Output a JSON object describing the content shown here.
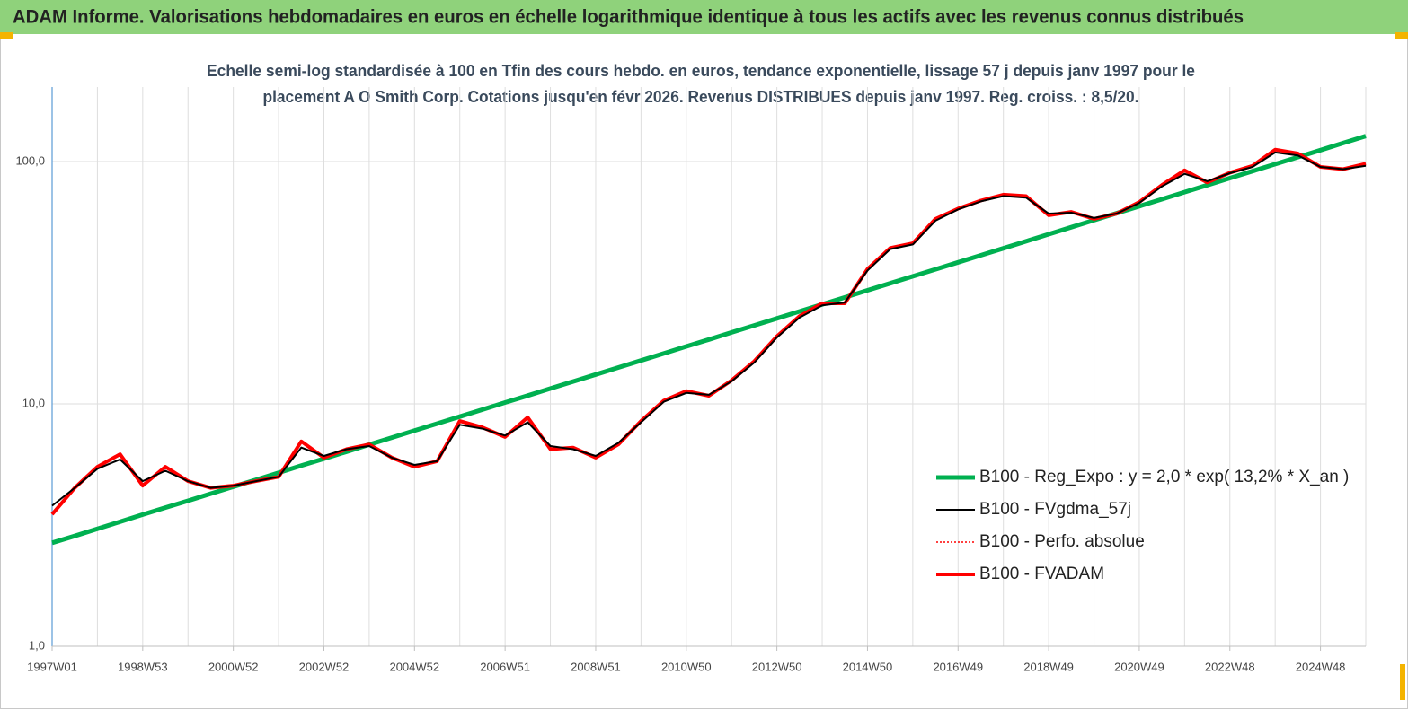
{
  "chart_data": {
    "type": "line",
    "title": "ADAM Informe. Valorisations hebdomadaires en euros en échelle logarithmique identique à tous les actifs avec les revenus connus distribués",
    "subtitle": [
      "Echelle semi-log standardisée à 100 en Tfin des cours hebdo. en euros, tendance exponentielle, lissage 57 j depuis janv 1997 pour le",
      "placement A O Smith Corp. Cotations jusqu'en févr 2026. Revenus DISTRIBUES depuis janv 1997. Reg. croiss. : 8,5/20."
    ],
    "log_scale": true,
    "grid": true,
    "legend_position": "right",
    "ylim": [
      1,
      203
    ],
    "yticks": [
      {
        "value": 1,
        "label": "1,0"
      },
      {
        "value": 10,
        "label": "10,0"
      },
      {
        "value": 100,
        "label": "100,0"
      }
    ],
    "categories": [
      "1997W01",
      null,
      null,
      null,
      "1998W53",
      null,
      null,
      null,
      "2000W52",
      null,
      null,
      null,
      "2002W52",
      null,
      null,
      null,
      "2004W52",
      null,
      null,
      null,
      "2006W51",
      null,
      null,
      null,
      "2008W51",
      null,
      null,
      null,
      "2010W50",
      null,
      null,
      null,
      "2012W50",
      null,
      null,
      null,
      "2014W50",
      null,
      null,
      null,
      "2016W49",
      null,
      null,
      null,
      "2018W49",
      null,
      null,
      null,
      "2020W49",
      null,
      null,
      null,
      "2022W48",
      null,
      null,
      null,
      "2024W48",
      null,
      null
    ],
    "series": [
      {
        "name": "B100 - Reg_Expo : y = 2,0 * exp( 13,2% *  X_an )",
        "color": "#00b050",
        "width": 5,
        "dash": "solid",
        "values": [
          2.67,
          2.85,
          3.05,
          3.26,
          3.49,
          3.73,
          3.98,
          4.26,
          4.55,
          4.86,
          5.2,
          5.56,
          5.94,
          6.35,
          6.79,
          7.26,
          7.76,
          8.29,
          8.86,
          9.47,
          10.13,
          10.82,
          11.57,
          12.37,
          13.22,
          14.13,
          15.1,
          16.14,
          17.26,
          18.44,
          19.72,
          21.07,
          22.53,
          24.08,
          25.74,
          27.51,
          29.41,
          31.43,
          33.6,
          35.91,
          38.39,
          41.03,
          43.86,
          46.88,
          50.11,
          53.57,
          57.26,
          61.2,
          65.42,
          69.93,
          74.75,
          79.9,
          85.4,
          91.29,
          97.58,
          104.3,
          111.5,
          119.2,
          127.4
        ]
      },
      {
        "name": "B100 - FVgdma_57j",
        "color": "#000000",
        "width": 2,
        "dash": "solid",
        "values": [
          3.8,
          4.5,
          5.4,
          5.9,
          4.8,
          5.3,
          4.8,
          4.5,
          4.6,
          4.8,
          5.0,
          6.6,
          6.1,
          6.5,
          6.7,
          6.0,
          5.6,
          5.8,
          8.2,
          7.9,
          7.4,
          8.4,
          6.7,
          6.5,
          6.1,
          6.9,
          8.4,
          10.2,
          11.1,
          10.9,
          12.4,
          14.8,
          18.8,
          22.7,
          25.5,
          26.2,
          35.5,
          43.5,
          45.5,
          57,
          63.5,
          68.5,
          72,
          71,
          61,
          61.5,
          58.5,
          61,
          67.5,
          79,
          89,
          83,
          89.5,
          95,
          109,
          106,
          95,
          93,
          96
        ]
      },
      {
        "name": "B100 - Perfo. absolue",
        "color": "#ff0000",
        "width": 1.5,
        "dash": "dotted",
        "values": [
          3.5,
          4.5,
          5.5,
          6.2,
          4.6,
          5.5,
          4.8,
          4.5,
          4.6,
          4.8,
          5.0,
          7.0,
          6.0,
          6.5,
          6.8,
          6.0,
          5.5,
          5.8,
          8.5,
          8.0,
          7.3,
          8.8,
          6.5,
          6.6,
          6.0,
          6.8,
          8.5,
          10.3,
          11.3,
          10.8,
          12.5,
          15,
          19,
          23,
          26,
          26,
          36,
          44,
          46,
          58,
          64,
          69,
          73,
          72,
          60,
          62,
          58,
          61,
          68,
          80,
          92,
          82,
          90,
          96,
          112,
          108,
          95,
          93,
          98
        ]
      },
      {
        "name": "B100 - FVADAM",
        "color": "#ff0000",
        "width": 4,
        "dash": "solid",
        "values": [
          3.5,
          4.5,
          5.5,
          6.2,
          4.6,
          5.5,
          4.8,
          4.5,
          4.6,
          4.8,
          5.0,
          7.0,
          6.0,
          6.5,
          6.8,
          6.0,
          5.5,
          5.8,
          8.5,
          8.0,
          7.3,
          8.8,
          6.5,
          6.6,
          6.0,
          6.8,
          8.5,
          10.3,
          11.3,
          10.8,
          12.5,
          15,
          19,
          23,
          26,
          26,
          36,
          44,
          46,
          58,
          64,
          69,
          73,
          72,
          60,
          62,
          58,
          61,
          68,
          80,
          92,
          82,
          90,
          96,
          112,
          108,
          95,
          93,
          98
        ]
      }
    ]
  }
}
